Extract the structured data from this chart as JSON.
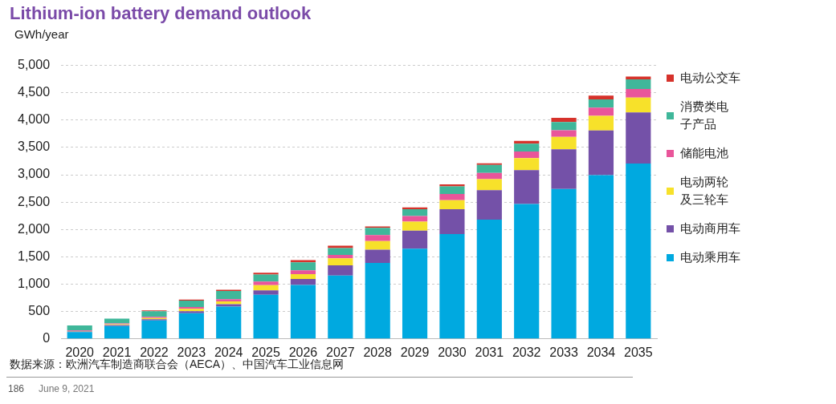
{
  "chart_data": {
    "type": "bar",
    "title": "Lithium-ion battery demand outlook",
    "ylabel": "GWh/year",
    "stacked": true,
    "grid": "y",
    "legend": "right",
    "categories": [
      "2020",
      "2021",
      "2022",
      "2023",
      "2024",
      "2025",
      "2026",
      "2027",
      "2028",
      "2029",
      "2030",
      "2031",
      "2032",
      "2033",
      "2034",
      "2035"
    ],
    "ylim": [
      0,
      5000
    ],
    "yticks": [
      {
        "value": 0,
        "label": "0"
      },
      {
        "value": 500,
        "label": "500"
      },
      {
        "value": 1000,
        "label": "1,000"
      },
      {
        "value": 1500,
        "label": "1,500"
      },
      {
        "value": 2000,
        "label": "2,000"
      },
      {
        "value": 2500,
        "label": "2,500"
      },
      {
        "value": 3000,
        "label": "3,000"
      },
      {
        "value": 3500,
        "label": "3,500"
      },
      {
        "value": 4000,
        "label": "4,000"
      },
      {
        "value": 4500,
        "label": "4,500"
      },
      {
        "value": 5000,
        "label": "5,000"
      }
    ],
    "series": [
      {
        "name": "电动乘用车",
        "color": "#00a9e0",
        "values": [
          125,
          237,
          338,
          470,
          590,
          808,
          985,
          1160,
          1390,
          1650,
          1915,
          2180,
          2465,
          2740,
          2995,
          3205
        ]
      },
      {
        "name": "电动商用车",
        "color": "#7451a8",
        "values": [
          10,
          15,
          20,
          35,
          45,
          80,
          110,
          185,
          240,
          330,
          455,
          540,
          620,
          725,
          815,
          935
        ]
      },
      {
        "name": "电动两轮及三轮车",
        "color": "#f7e12a",
        "values": [
          10,
          15,
          25,
          45,
          50,
          95,
          90,
          130,
          160,
          165,
          165,
          200,
          220,
          230,
          270,
          270
        ]
      },
      {
        "name": "储能电池",
        "color": "#e9559a",
        "values": [
          10,
          15,
          20,
          35,
          40,
          65,
          70,
          60,
          110,
          100,
          115,
          115,
          120,
          120,
          150,
          160
        ]
      },
      {
        "name": "消费类电子产品",
        "color": "#3fb79a",
        "values": [
          90,
          90,
          105,
          115,
          150,
          130,
          145,
          125,
          130,
          125,
          140,
          145,
          145,
          150,
          150,
          175
        ]
      },
      {
        "name": "电动公交车",
        "color": "#d6322b",
        "values": [
          null,
          null,
          12,
          20,
          25,
          30,
          40,
          45,
          25,
          35,
          35,
          30,
          50,
          75,
          70,
          50
        ]
      }
    ],
    "annotations": [
      "数据来源：欧洲汽车制造商联合会（AECA）、中国汽车工业信息网",
      "186",
      "June 9, 2021"
    ]
  }
}
